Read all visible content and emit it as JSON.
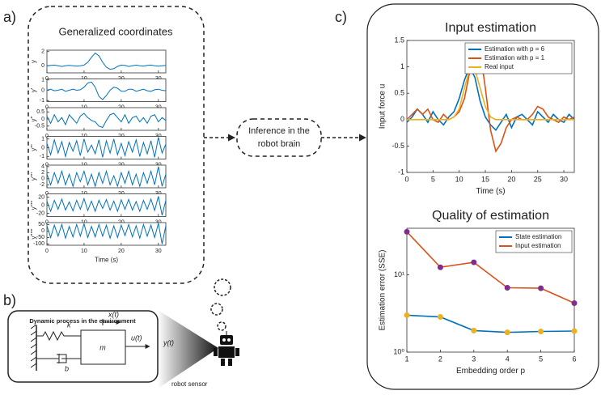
{
  "panels": [
    "a)",
    "b)",
    "c)"
  ],
  "diagram": {
    "inference": [
      "Inference in the",
      "robot brain"
    ],
    "process_title": "Dynamic process in the environment",
    "x_label": "x(t)",
    "k_label": "k",
    "m_label": "m",
    "u_label": "u(t)",
    "b_label": "b",
    "y_label": "y(t)",
    "sensor": "robot sensor"
  },
  "chart_data": [
    {
      "type": "line",
      "title": "Generalized coordinates",
      "ylabel": "y",
      "color": "#0072bd",
      "x": [
        0,
        1,
        2,
        3,
        4,
        5,
        6,
        7,
        8,
        9,
        10,
        11,
        12,
        13,
        14,
        15,
        16,
        17,
        18,
        19,
        20,
        21,
        22,
        23,
        24,
        25,
        26,
        27,
        28,
        29,
        30,
        31,
        32
      ],
      "values": [
        0,
        0.05,
        0.1,
        0,
        -0.1,
        0,
        0.05,
        0,
        -0.05,
        0,
        0.1,
        0.5,
        1.2,
        1.8,
        1.4,
        0.5,
        -0.2,
        -0.5,
        -0.4,
        -0.1,
        0.1,
        0.05,
        -0.1,
        0,
        0.1,
        0,
        -0.05,
        0.05,
        0.1,
        0,
        -0.05,
        0,
        0.05
      ],
      "xlim": [
        0,
        32
      ],
      "xticks": [
        0,
        10,
        20,
        30
      ],
      "ylim": [
        -1,
        2.2
      ],
      "yticks": [
        0,
        2
      ]
    },
    {
      "type": "line",
      "ylabel": "y'",
      "color": "#0072bd",
      "x": [
        0,
        1,
        2,
        3,
        4,
        5,
        6,
        7,
        8,
        9,
        10,
        11,
        12,
        13,
        14,
        15,
        16,
        17,
        18,
        19,
        20,
        21,
        22,
        23,
        24,
        25,
        26,
        27,
        28,
        29,
        30,
        31,
        32
      ],
      "values": [
        0,
        0.1,
        -0.05,
        0,
        0.1,
        -0.1,
        0,
        0.1,
        0,
        0.05,
        0.3,
        0.7,
        0.8,
        0.3,
        -0.6,
        -0.9,
        -0.5,
        0,
        0.3,
        0.2,
        -0.1,
        -0.1,
        0.1,
        0.1,
        -0.1,
        0,
        0.1,
        -0.05,
        -0.1,
        0.05,
        0.1,
        0,
        -0.05
      ],
      "xlim": [
        0,
        32
      ],
      "xticks": [
        0,
        10,
        20,
        30
      ],
      "ylim": [
        -1.1,
        1.1
      ],
      "yticks": [
        -1,
        0,
        1
      ]
    },
    {
      "type": "line",
      "ylabel": "y''",
      "color": "#0072bd",
      "x": [
        0,
        1,
        2,
        3,
        4,
        5,
        6,
        7,
        8,
        9,
        10,
        11,
        12,
        13,
        14,
        15,
        16,
        17,
        18,
        19,
        20,
        21,
        22,
        23,
        24,
        25,
        26,
        27,
        28,
        29,
        30,
        31,
        32
      ],
      "values": [
        0.2,
        -0.3,
        0.3,
        -0.2,
        0.1,
        -0.4,
        0.3,
        0,
        -0.3,
        0.2,
        0.4,
        0.1,
        -0.1,
        -0.2,
        -0.5,
        -0.6,
        -0.1,
        0.3,
        0.4,
        0.1,
        -0.2,
        0.3,
        -0.3,
        0.1,
        0.2,
        -0.2,
        0.1,
        -0.3,
        0.2,
        0.3,
        -0.2,
        0.1,
        -0.1
      ],
      "xlim": [
        0,
        32
      ],
      "xticks": [
        0,
        10,
        20,
        30
      ],
      "ylim": [
        -0.8,
        0.8
      ],
      "yticks": [
        -0.5,
        0,
        0.5
      ]
    },
    {
      "type": "line",
      "ylabel": "y'''",
      "color": "#0072bd",
      "x": [
        0,
        1,
        2,
        3,
        4,
        5,
        6,
        7,
        8,
        9,
        10,
        11,
        12,
        13,
        14,
        15,
        16,
        17,
        18,
        19,
        20,
        21,
        22,
        23,
        24,
        25,
        26,
        27,
        28,
        29,
        30,
        31,
        32
      ],
      "values": [
        0.5,
        -0.8,
        0.9,
        -0.6,
        0.7,
        -1,
        0.6,
        -0.4,
        0.8,
        -0.9,
        1,
        -0.5,
        0.3,
        -0.7,
        0.9,
        -1.1,
        0.8,
        -0.6,
        1,
        -0.8,
        0.5,
        -0.9,
        0.7,
        -0.5,
        0.9,
        -1,
        0.6,
        -0.7,
        0.8,
        -1.1,
        1.2,
        -0.6,
        0.4
      ],
      "xlim": [
        0,
        32
      ],
      "xticks": [
        0,
        10,
        20,
        30
      ],
      "ylim": [
        -1.3,
        1.3
      ],
      "yticks": [
        -1,
        0,
        1
      ]
    },
    {
      "type": "line",
      "ylabel": "y''''",
      "color": "#0072bd",
      "x": [
        0,
        1,
        2,
        3,
        4,
        5,
        6,
        7,
        8,
        9,
        10,
        11,
        12,
        13,
        14,
        15,
        16,
        17,
        18,
        19,
        20,
        21,
        22,
        23,
        24,
        25,
        26,
        27,
        28,
        29,
        30,
        31,
        32
      ],
      "values": [
        1.5,
        -2,
        2,
        -1.5,
        2.5,
        -2,
        1.5,
        -2.5,
        2,
        -1,
        2.5,
        -2,
        1.5,
        -2.5,
        2,
        -1.5,
        2.5,
        -2,
        1,
        -2.5,
        2,
        -1.5,
        2.5,
        -2,
        1.5,
        -2.5,
        2,
        -1.5,
        2.5,
        -2,
        4,
        -2.5,
        1.5
      ],
      "xlim": [
        0,
        32
      ],
      "xticks": [
        0,
        10,
        20,
        30
      ],
      "ylim": [
        -3,
        4.5
      ],
      "yticks": [
        -2,
        0,
        2,
        4
      ]
    },
    {
      "type": "line",
      "ylabel": "y'''''",
      "color": "#0072bd",
      "x": [
        0,
        1,
        2,
        3,
        4,
        5,
        6,
        7,
        8,
        9,
        10,
        11,
        12,
        13,
        14,
        15,
        16,
        17,
        18,
        19,
        20,
        21,
        22,
        23,
        24,
        25,
        26,
        27,
        28,
        29,
        30,
        31,
        32
      ],
      "values": [
        10,
        -15,
        12,
        -10,
        15,
        -12,
        8,
        -14,
        12,
        -10,
        16,
        -13,
        10,
        -15,
        12,
        -8,
        14,
        -12,
        10,
        -15,
        13,
        -10,
        14,
        -12,
        9,
        -15,
        12,
        -10,
        15,
        -13,
        22,
        -25,
        12
      ],
      "xlim": [
        0,
        32
      ],
      "xticks": [
        0,
        10,
        20,
        30
      ],
      "ylim": [
        -28,
        28
      ],
      "yticks": [
        -20,
        0,
        20
      ]
    },
    {
      "type": "line",
      "ylabel": "y''''''",
      "xlabel": "Time (s)",
      "color": "#0072bd",
      "x": [
        0,
        1,
        2,
        3,
        4,
        5,
        6,
        7,
        8,
        9,
        10,
        11,
        12,
        13,
        14,
        15,
        16,
        17,
        18,
        19,
        20,
        21,
        22,
        23,
        24,
        25,
        26,
        27,
        28,
        29,
        30,
        31,
        32
      ],
      "values": [
        40,
        -50,
        45,
        -40,
        50,
        -55,
        35,
        -45,
        50,
        -40,
        55,
        -50,
        35,
        -45,
        50,
        -40,
        45,
        -55,
        40,
        -50,
        45,
        -35,
        50,
        -45,
        40,
        -55,
        50,
        -40,
        45,
        -50,
        60,
        -100,
        40
      ],
      "xlim": [
        0,
        32
      ],
      "xticks": [
        0,
        10,
        20,
        30
      ],
      "ylim": [
        -110,
        65
      ],
      "yticks": [
        -100,
        -50,
        0,
        50
      ]
    },
    {
      "type": "line",
      "title": "Input estimation",
      "xlabel": "Time (s)",
      "ylabel": "Input force u",
      "legend": "northeast",
      "x": [
        0,
        1,
        2,
        3,
        4,
        5,
        6,
        7,
        8,
        9,
        10,
        11,
        12,
        13,
        14,
        15,
        16,
        17,
        18,
        19,
        20,
        21,
        22,
        23,
        24,
        25,
        26,
        27,
        28,
        29,
        30,
        31,
        32
      ],
      "series": [
        {
          "name": "Estimation with p = 6",
          "color": "#0072bd",
          "values": [
            -0.05,
            0.05,
            0.2,
            0.1,
            -0.05,
            0.15,
            0,
            -0.1,
            0.05,
            0.15,
            0.4,
            0.75,
            1.0,
            0.8,
            0.35,
            0.05,
            -0.1,
            -0.2,
            -0.05,
            0.1,
            -0.15,
            0.05,
            0.1,
            0,
            -0.1,
            0.15,
            0.05,
            -0.05,
            0.1,
            0,
            -0.05,
            0.1,
            0
          ]
        },
        {
          "name": "Estimation with p = 1",
          "color": "#d95319",
          "values": [
            0,
            0.1,
            0.2,
            0.1,
            0.2,
            0,
            -0.05,
            0.1,
            0,
            0.05,
            0.15,
            0.4,
            0.9,
            1.4,
            1.3,
            0.6,
            -0.2,
            -0.6,
            -0.45,
            -0.15,
            0,
            0.05,
            0,
            0,
            0.1,
            0.25,
            0.2,
            0.05,
            0,
            -0.05,
            0.05,
            0,
            0.05
          ]
        },
        {
          "name": "Real input",
          "color": "#edb120",
          "values": [
            0,
            0,
            0,
            0,
            0,
            0,
            0,
            0,
            0,
            0.05,
            0.2,
            0.6,
            0.95,
            0.95,
            0.6,
            0.25,
            0.05,
            0,
            0,
            0,
            0,
            0,
            0,
            0,
            0,
            0,
            0,
            0,
            0,
            0,
            0,
            0,
            0
          ]
        }
      ],
      "xlim": [
        0,
        32
      ],
      "xticks": [
        0,
        5,
        10,
        15,
        20,
        25,
        30
      ],
      "ylim": [
        -1,
        1.5
      ],
      "yticks": [
        -1,
        -0.5,
        0,
        0.5,
        1,
        1.5
      ]
    },
    {
      "type": "line",
      "title": "Quality of estimation",
      "xlabel": "Embedding order p",
      "ylabel": "Estimation error (SSE)",
      "legend": "northeast",
      "log_y": true,
      "markers": true,
      "x": [
        1,
        2,
        3,
        4,
        5,
        6
      ],
      "series": [
        {
          "name": "State estimation",
          "color": "#0072bd",
          "marker_color": "#edb120",
          "values": [
            3.0,
            2.85,
            1.9,
            1.8,
            1.85,
            1.87
          ]
        },
        {
          "name": "Input estimation",
          "color": "#d95319",
          "marker_color": "#7e2f8e",
          "values": [
            36,
            12.5,
            14.5,
            6.8,
            6.7,
            4.3
          ]
        }
      ],
      "xlim": [
        1,
        6
      ],
      "xticks": [
        1,
        2,
        3,
        4,
        5,
        6
      ],
      "ylim": [
        1,
        40
      ],
      "yticks": [
        {
          "value": 1,
          "label": "10⁰"
        },
        {
          "value": 10,
          "label": "10¹"
        }
      ]
    }
  ]
}
